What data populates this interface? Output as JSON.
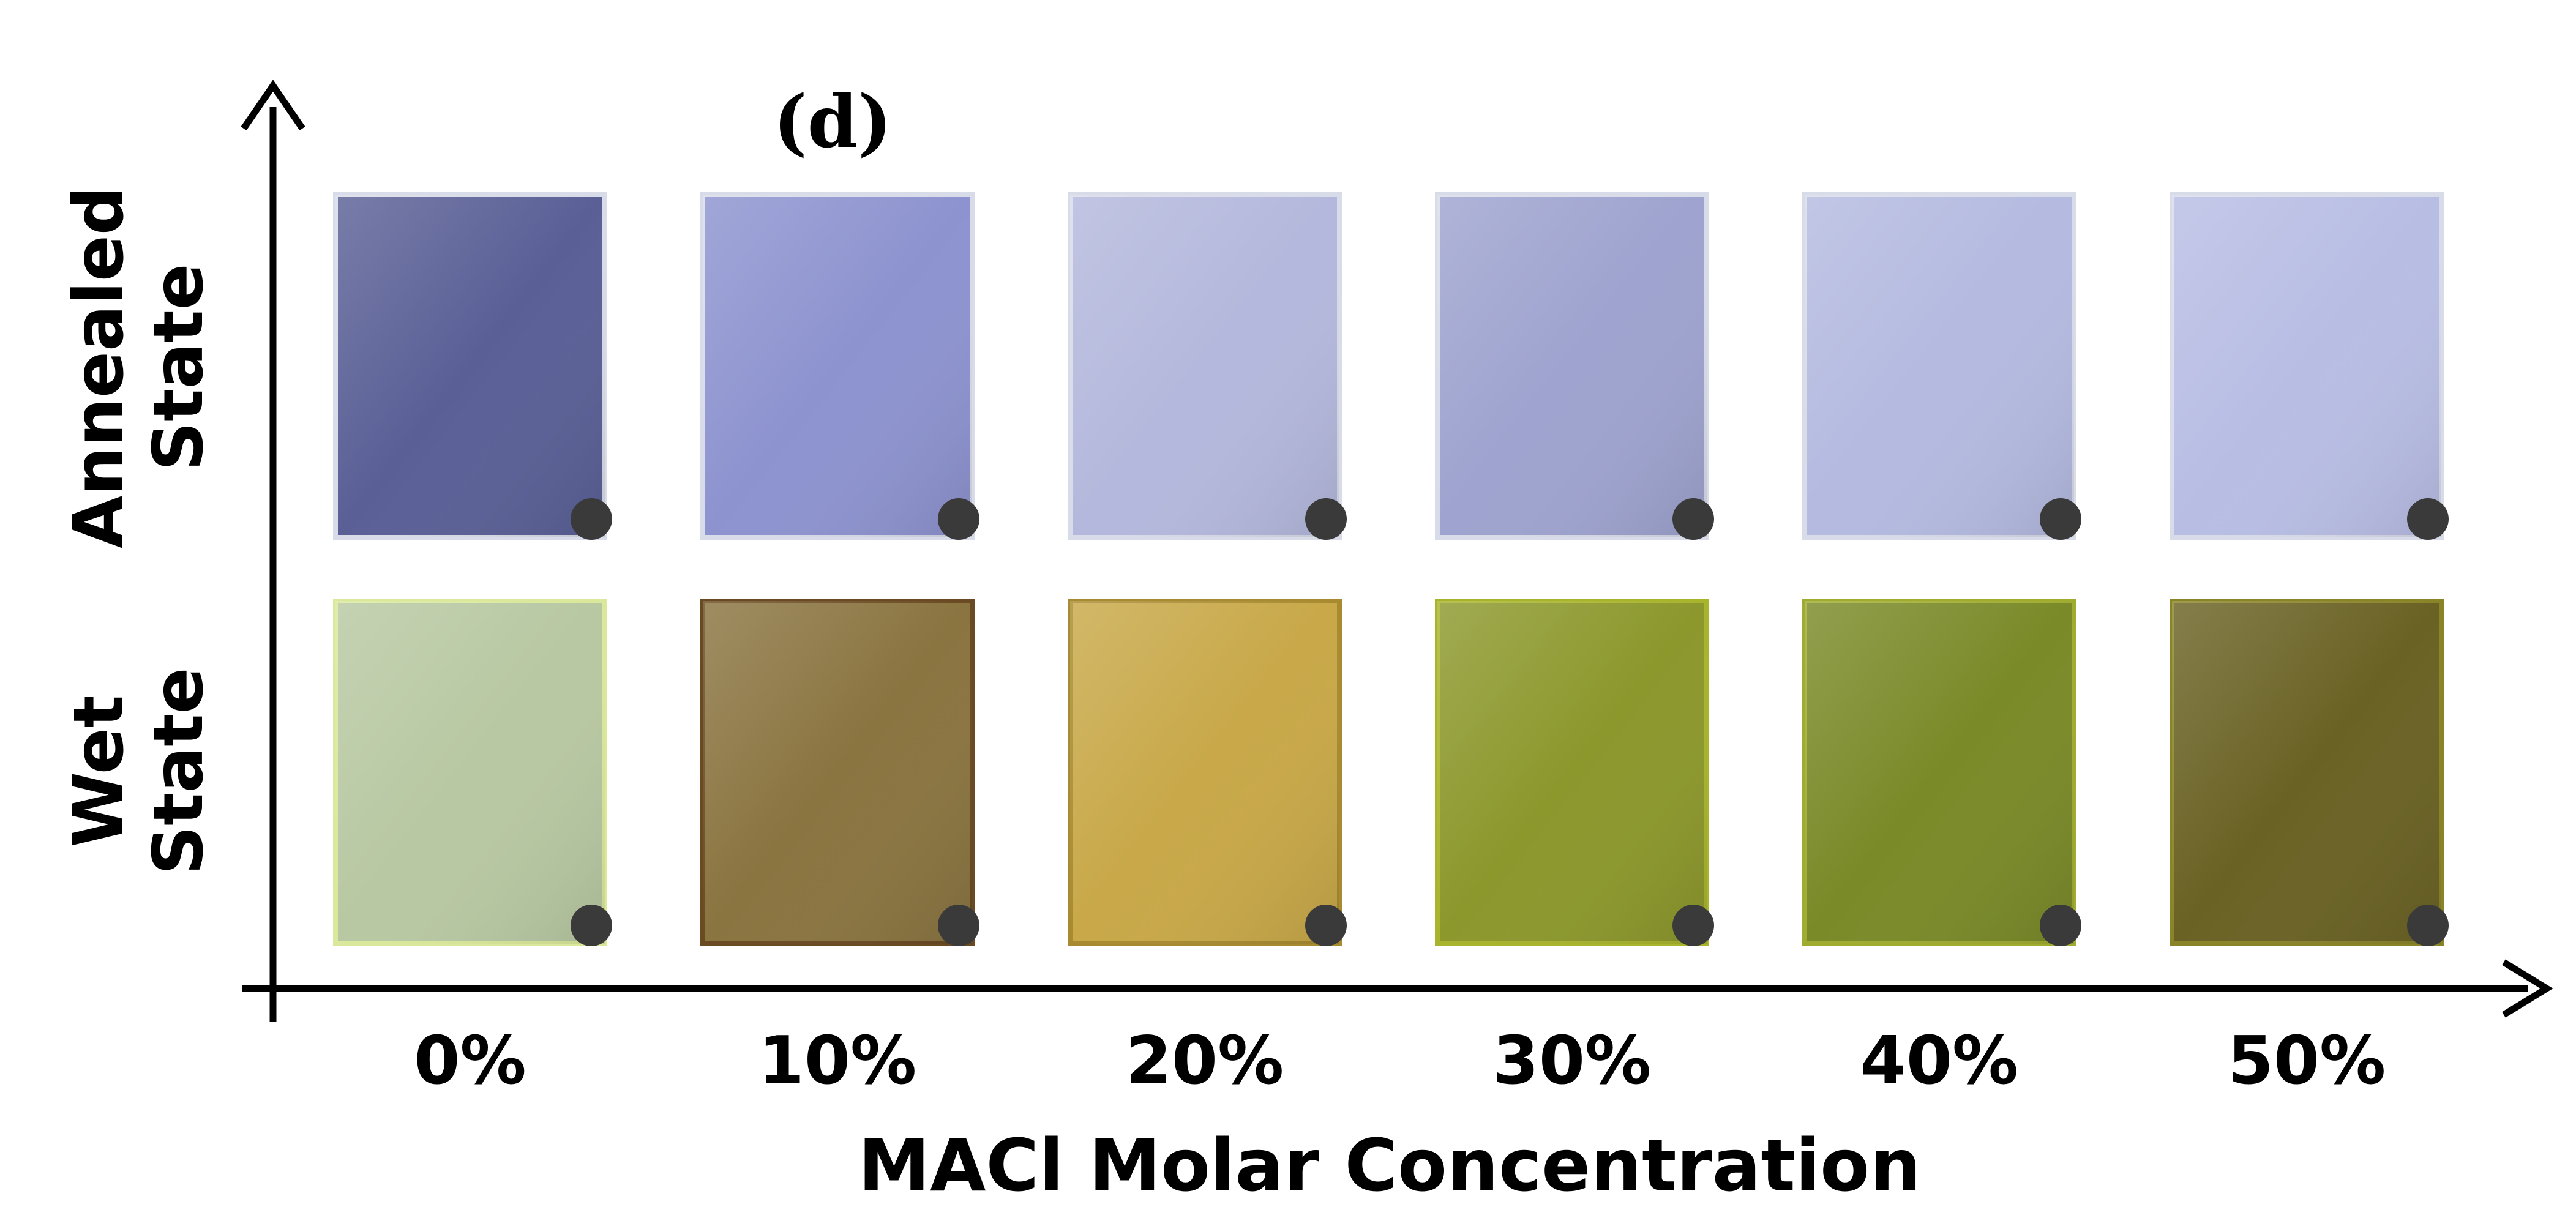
{
  "figure": {
    "panel_label": "(d)",
    "x_axis_title": "MACl Molar Concentration",
    "rows": [
      {
        "line1": "Annealed",
        "line2": "State"
      },
      {
        "line1": "Wet",
        "line2": "State"
      }
    ],
    "columns": [
      "0%",
      "10%",
      "20%",
      "30%",
      "40%",
      "50%"
    ],
    "annealed_colors": [
      "#5a6096",
      "#8d93cf",
      "#b4b8dc",
      "#9ea3cf",
      "#b4bae0",
      "#b8bde4"
    ],
    "wet_colors": [
      "#b8c8a2",
      "#8a7440",
      "#c8a848",
      "#8c982c",
      "#7a8a28",
      "#6a6224"
    ]
  }
}
